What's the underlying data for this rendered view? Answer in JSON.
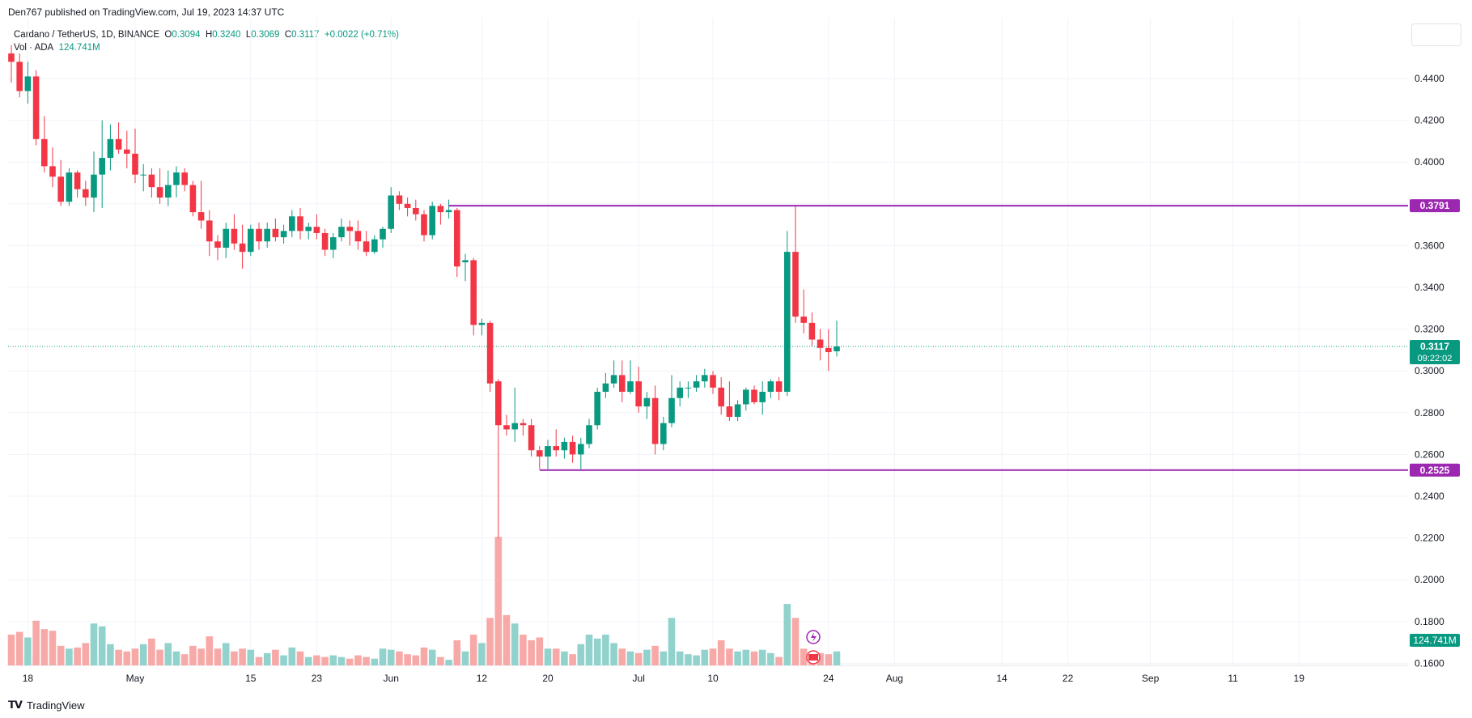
{
  "header": {
    "publisher": "Den767 published on TradingView.com, Jul 19, 2023 14:37 UTC"
  },
  "legend": {
    "symbol": "Cardano / TetherUS, 1D, BINANCE",
    "open_label": "O",
    "open": "0.3094",
    "high_label": "H",
    "high": "0.3240",
    "low_label": "L",
    "low": "0.3069",
    "close_label": "C",
    "close": "0.3117",
    "change": "+0.0022 (+0.71%)",
    "vol_label": "Vol · ADA",
    "vol_value": "124.741M"
  },
  "footer": {
    "brand": "TradingView"
  },
  "colors": {
    "up": "#089981",
    "down": "#f23645",
    "up_vol": "#92d2cc",
    "down_vol": "#f7a9a7",
    "level": "#9c27b0",
    "grid": "#f0f3fa"
  },
  "chart_data": {
    "type": "candlestick",
    "y_axis": {
      "ticks": [
        "0.4400",
        "0.4200",
        "0.4000",
        "0.3800",
        "0.3600",
        "0.3400",
        "0.3200",
        "0.3000",
        "0.2800",
        "0.2600",
        "0.2400",
        "0.2200",
        "0.2000",
        "0.1800",
        "0.1600"
      ],
      "range": [
        0.16,
        0.455
      ]
    },
    "x_axis": {
      "ticks": [
        {
          "label": "18",
          "date": "2023-04-18"
        },
        {
          "label": "May",
          "date": "2023-05-01"
        },
        {
          "label": "15",
          "date": "2023-05-15"
        },
        {
          "label": "23",
          "date": "2023-05-23"
        },
        {
          "label": "Jun",
          "date": "2023-06-01"
        },
        {
          "label": "12",
          "date": "2023-06-12"
        },
        {
          "label": "20",
          "date": "2023-06-20"
        },
        {
          "label": "Jul",
          "date": "2023-07-01"
        },
        {
          "label": "10",
          "date": "2023-07-10"
        },
        {
          "label": "24",
          "date": "2023-07-24"
        },
        {
          "label": "Aug",
          "date": "2023-08-01"
        },
        {
          "label": "14",
          "date": "2023-08-14"
        },
        {
          "label": "22",
          "date": "2023-08-22"
        },
        {
          "label": "Sep",
          "date": "2023-09-01"
        },
        {
          "label": "11",
          "date": "2023-09-11"
        },
        {
          "label": "19",
          "date": "2023-09-19"
        }
      ]
    },
    "levels": [
      {
        "value": "0.3791"
      },
      {
        "value": "0.2525"
      }
    ],
    "last_price": {
      "value": "0.3117",
      "countdown": "09:22:02"
    },
    "volume_last": "124.741M",
    "candles": [
      {
        "d": "2023-04-16",
        "o": 0.452,
        "h": 0.456,
        "l": 0.438,
        "c": 0.448,
        "v": 55
      },
      {
        "d": "2023-04-17",
        "o": 0.448,
        "h": 0.452,
        "l": 0.431,
        "c": 0.434,
        "v": 60
      },
      {
        "d": "2023-04-18",
        "o": 0.434,
        "h": 0.448,
        "l": 0.428,
        "c": 0.441,
        "v": 50
      },
      {
        "d": "2023-04-19",
        "o": 0.441,
        "h": 0.444,
        "l": 0.408,
        "c": 0.411,
        "v": 80
      },
      {
        "d": "2023-04-20",
        "o": 0.411,
        "h": 0.422,
        "l": 0.395,
        "c": 0.398,
        "v": 65
      },
      {
        "d": "2023-04-21",
        "o": 0.398,
        "h": 0.407,
        "l": 0.388,
        "c": 0.393,
        "v": 62
      },
      {
        "d": "2023-04-22",
        "o": 0.393,
        "h": 0.401,
        "l": 0.379,
        "c": 0.381,
        "v": 35
      },
      {
        "d": "2023-04-23",
        "o": 0.381,
        "h": 0.397,
        "l": 0.379,
        "c": 0.395,
        "v": 30
      },
      {
        "d": "2023-04-24",
        "o": 0.395,
        "h": 0.396,
        "l": 0.383,
        "c": 0.387,
        "v": 32
      },
      {
        "d": "2023-04-25",
        "o": 0.387,
        "h": 0.391,
        "l": 0.379,
        "c": 0.383,
        "v": 40
      },
      {
        "d": "2023-04-26",
        "o": 0.383,
        "h": 0.405,
        "l": 0.376,
        "c": 0.394,
        "v": 75
      },
      {
        "d": "2023-04-27",
        "o": 0.394,
        "h": 0.42,
        "l": 0.378,
        "c": 0.402,
        "v": 70
      },
      {
        "d": "2023-04-28",
        "o": 0.402,
        "h": 0.418,
        "l": 0.396,
        "c": 0.411,
        "v": 38
      },
      {
        "d": "2023-04-29",
        "o": 0.411,
        "h": 0.419,
        "l": 0.404,
        "c": 0.406,
        "v": 28
      },
      {
        "d": "2023-04-30",
        "o": 0.406,
        "h": 0.415,
        "l": 0.397,
        "c": 0.404,
        "v": 25
      },
      {
        "d": "2023-05-01",
        "o": 0.404,
        "h": 0.416,
        "l": 0.39,
        "c": 0.394,
        "v": 30
      },
      {
        "d": "2023-05-02",
        "o": 0.394,
        "h": 0.399,
        "l": 0.386,
        "c": 0.394,
        "v": 38
      },
      {
        "d": "2023-05-03",
        "o": 0.394,
        "h": 0.397,
        "l": 0.383,
        "c": 0.388,
        "v": 48
      },
      {
        "d": "2023-05-04",
        "o": 0.388,
        "h": 0.397,
        "l": 0.38,
        "c": 0.383,
        "v": 28
      },
      {
        "d": "2023-05-05",
        "o": 0.383,
        "h": 0.396,
        "l": 0.379,
        "c": 0.389,
        "v": 40
      },
      {
        "d": "2023-05-06",
        "o": 0.389,
        "h": 0.398,
        "l": 0.383,
        "c": 0.395,
        "v": 25
      },
      {
        "d": "2023-05-07",
        "o": 0.395,
        "h": 0.397,
        "l": 0.386,
        "c": 0.389,
        "v": 20
      },
      {
        "d": "2023-05-08",
        "o": 0.389,
        "h": 0.391,
        "l": 0.374,
        "c": 0.376,
        "v": 35
      },
      {
        "d": "2023-05-09",
        "o": 0.376,
        "h": 0.391,
        "l": 0.368,
        "c": 0.372,
        "v": 30
      },
      {
        "d": "2023-05-10",
        "o": 0.372,
        "h": 0.377,
        "l": 0.355,
        "c": 0.362,
        "v": 52
      },
      {
        "d": "2023-05-11",
        "o": 0.362,
        "h": 0.365,
        "l": 0.353,
        "c": 0.359,
        "v": 30
      },
      {
        "d": "2023-05-12",
        "o": 0.359,
        "h": 0.371,
        "l": 0.354,
        "c": 0.368,
        "v": 40
      },
      {
        "d": "2023-05-13",
        "o": 0.368,
        "h": 0.375,
        "l": 0.358,
        "c": 0.361,
        "v": 25
      },
      {
        "d": "2023-05-14",
        "o": 0.361,
        "h": 0.37,
        "l": 0.349,
        "c": 0.357,
        "v": 30
      },
      {
        "d": "2023-05-15",
        "o": 0.357,
        "h": 0.37,
        "l": 0.355,
        "c": 0.368,
        "v": 28
      },
      {
        "d": "2023-05-16",
        "o": 0.368,
        "h": 0.371,
        "l": 0.358,
        "c": 0.362,
        "v": 15
      },
      {
        "d": "2023-05-17",
        "o": 0.362,
        "h": 0.371,
        "l": 0.359,
        "c": 0.368,
        "v": 22
      },
      {
        "d": "2023-05-18",
        "o": 0.368,
        "h": 0.373,
        "l": 0.362,
        "c": 0.364,
        "v": 28
      },
      {
        "d": "2023-05-19",
        "o": 0.364,
        "h": 0.37,
        "l": 0.361,
        "c": 0.367,
        "v": 18
      },
      {
        "d": "2023-05-20",
        "o": 0.367,
        "h": 0.377,
        "l": 0.364,
        "c": 0.374,
        "v": 32
      },
      {
        "d": "2023-05-21",
        "o": 0.374,
        "h": 0.378,
        "l": 0.363,
        "c": 0.367,
        "v": 25
      },
      {
        "d": "2023-05-22",
        "o": 0.367,
        "h": 0.371,
        "l": 0.363,
        "c": 0.369,
        "v": 15
      },
      {
        "d": "2023-05-23",
        "o": 0.369,
        "h": 0.375,
        "l": 0.363,
        "c": 0.366,
        "v": 18
      },
      {
        "d": "2023-05-24",
        "o": 0.366,
        "h": 0.368,
        "l": 0.355,
        "c": 0.358,
        "v": 15
      },
      {
        "d": "2023-05-25",
        "o": 0.358,
        "h": 0.366,
        "l": 0.354,
        "c": 0.364,
        "v": 18
      },
      {
        "d": "2023-05-26",
        "o": 0.364,
        "h": 0.373,
        "l": 0.362,
        "c": 0.369,
        "v": 15
      },
      {
        "d": "2023-05-27",
        "o": 0.369,
        "h": 0.372,
        "l": 0.36,
        "c": 0.367,
        "v": 12
      },
      {
        "d": "2023-05-28",
        "o": 0.367,
        "h": 0.372,
        "l": 0.358,
        "c": 0.362,
        "v": 18
      },
      {
        "d": "2023-05-29",
        "o": 0.362,
        "h": 0.367,
        "l": 0.355,
        "c": 0.357,
        "v": 15
      },
      {
        "d": "2023-05-30",
        "o": 0.357,
        "h": 0.365,
        "l": 0.356,
        "c": 0.363,
        "v": 12
      },
      {
        "d": "2023-05-31",
        "o": 0.363,
        "h": 0.369,
        "l": 0.359,
        "c": 0.368,
        "v": 30
      },
      {
        "d": "2023-06-01",
        "o": 0.368,
        "h": 0.388,
        "l": 0.366,
        "c": 0.384,
        "v": 28
      },
      {
        "d": "2023-06-02",
        "o": 0.384,
        "h": 0.386,
        "l": 0.377,
        "c": 0.38,
        "v": 25
      },
      {
        "d": "2023-06-03",
        "o": 0.38,
        "h": 0.383,
        "l": 0.374,
        "c": 0.378,
        "v": 20
      },
      {
        "d": "2023-06-04",
        "o": 0.378,
        "h": 0.382,
        "l": 0.372,
        "c": 0.375,
        "v": 18
      },
      {
        "d": "2023-06-05",
        "o": 0.375,
        "h": 0.377,
        "l": 0.362,
        "c": 0.365,
        "v": 32
      },
      {
        "d": "2023-06-06",
        "o": 0.365,
        "h": 0.381,
        "l": 0.363,
        "c": 0.379,
        "v": 28
      },
      {
        "d": "2023-06-07",
        "o": 0.379,
        "h": 0.38,
        "l": 0.37,
        "c": 0.376,
        "v": 15
      },
      {
        "d": "2023-06-08",
        "o": 0.376,
        "h": 0.382,
        "l": 0.373,
        "c": 0.377,
        "v": 10
      },
      {
        "d": "2023-06-09",
        "o": 0.377,
        "h": 0.378,
        "l": 0.345,
        "c": 0.35,
        "v": 45
      },
      {
        "d": "2023-06-10",
        "o": 0.352,
        "h": 0.356,
        "l": 0.343,
        "c": 0.353,
        "v": 25
      },
      {
        "d": "2023-06-11",
        "o": 0.353,
        "h": 0.354,
        "l": 0.317,
        "c": 0.322,
        "v": 55
      },
      {
        "d": "2023-06-12",
        "o": 0.322,
        "h": 0.325,
        "l": 0.317,
        "c": 0.323,
        "v": 40
      },
      {
        "d": "2023-06-13",
        "o": 0.323,
        "h": 0.324,
        "l": 0.29,
        "c": 0.294,
        "v": 85
      },
      {
        "d": "2023-06-14",
        "o": 0.295,
        "h": 0.296,
        "l": 0.22,
        "c": 0.274,
        "v": 230
      },
      {
        "d": "2023-06-15",
        "o": 0.274,
        "h": 0.279,
        "l": 0.269,
        "c": 0.272,
        "v": 90
      },
      {
        "d": "2023-06-16",
        "o": 0.272,
        "h": 0.292,
        "l": 0.266,
        "c": 0.275,
        "v": 75
      },
      {
        "d": "2023-06-17",
        "o": 0.275,
        "h": 0.277,
        "l": 0.269,
        "c": 0.274,
        "v": 55
      },
      {
        "d": "2023-06-18",
        "o": 0.274,
        "h": 0.277,
        "l": 0.259,
        "c": 0.262,
        "v": 45
      },
      {
        "d": "2023-06-19",
        "o": 0.262,
        "h": 0.264,
        "l": 0.253,
        "c": 0.259,
        "v": 50
      },
      {
        "d": "2023-06-20",
        "o": 0.259,
        "h": 0.267,
        "l": 0.253,
        "c": 0.264,
        "v": 30
      },
      {
        "d": "2023-06-21",
        "o": 0.264,
        "h": 0.272,
        "l": 0.259,
        "c": 0.262,
        "v": 30
      },
      {
        "d": "2023-06-22",
        "o": 0.262,
        "h": 0.268,
        "l": 0.258,
        "c": 0.266,
        "v": 25
      },
      {
        "d": "2023-06-23",
        "o": 0.266,
        "h": 0.269,
        "l": 0.256,
        "c": 0.26,
        "v": 20
      },
      {
        "d": "2023-06-24",
        "o": 0.26,
        "h": 0.268,
        "l": 0.253,
        "c": 0.265,
        "v": 38
      },
      {
        "d": "2023-06-25",
        "o": 0.265,
        "h": 0.277,
        "l": 0.263,
        "c": 0.274,
        "v": 55
      },
      {
        "d": "2023-06-26",
        "o": 0.274,
        "h": 0.292,
        "l": 0.272,
        "c": 0.29,
        "v": 48
      },
      {
        "d": "2023-06-27",
        "o": 0.29,
        "h": 0.299,
        "l": 0.287,
        "c": 0.294,
        "v": 55
      },
      {
        "d": "2023-06-28",
        "o": 0.294,
        "h": 0.305,
        "l": 0.292,
        "c": 0.298,
        "v": 40
      },
      {
        "d": "2023-06-29",
        "o": 0.298,
        "h": 0.305,
        "l": 0.285,
        "c": 0.29,
        "v": 30
      },
      {
        "d": "2023-06-30",
        "o": 0.29,
        "h": 0.305,
        "l": 0.289,
        "c": 0.295,
        "v": 25
      },
      {
        "d": "2023-07-01",
        "o": 0.295,
        "h": 0.302,
        "l": 0.28,
        "c": 0.283,
        "v": 22
      },
      {
        "d": "2023-07-02",
        "o": 0.283,
        "h": 0.29,
        "l": 0.277,
        "c": 0.287,
        "v": 28
      },
      {
        "d": "2023-07-03",
        "o": 0.287,
        "h": 0.293,
        "l": 0.26,
        "c": 0.265,
        "v": 35
      },
      {
        "d": "2023-07-04",
        "o": 0.265,
        "h": 0.278,
        "l": 0.262,
        "c": 0.275,
        "v": 25
      },
      {
        "d": "2023-07-05",
        "o": 0.275,
        "h": 0.298,
        "l": 0.273,
        "c": 0.287,
        "v": 85
      },
      {
        "d": "2023-07-06",
        "o": 0.287,
        "h": 0.295,
        "l": 0.283,
        "c": 0.292,
        "v": 25
      },
      {
        "d": "2023-07-07",
        "o": 0.292,
        "h": 0.295,
        "l": 0.287,
        "c": 0.292,
        "v": 20
      },
      {
        "d": "2023-07-08",
        "o": 0.292,
        "h": 0.298,
        "l": 0.29,
        "c": 0.295,
        "v": 18
      },
      {
        "d": "2023-07-09",
        "o": 0.295,
        "h": 0.301,
        "l": 0.292,
        "c": 0.298,
        "v": 28
      },
      {
        "d": "2023-07-10",
        "o": 0.298,
        "h": 0.3,
        "l": 0.289,
        "c": 0.292,
        "v": 30
      },
      {
        "d": "2023-07-11",
        "o": 0.292,
        "h": 0.297,
        "l": 0.279,
        "c": 0.283,
        "v": 45
      },
      {
        "d": "2023-07-12",
        "o": 0.283,
        "h": 0.295,
        "l": 0.276,
        "c": 0.278,
        "v": 30
      },
      {
        "d": "2023-07-13",
        "o": 0.278,
        "h": 0.286,
        "l": 0.276,
        "c": 0.284,
        "v": 25
      },
      {
        "d": "2023-07-14",
        "o": 0.284,
        "h": 0.292,
        "l": 0.281,
        "c": 0.291,
        "v": 28
      },
      {
        "d": "2023-07-15",
        "o": 0.291,
        "h": 0.293,
        "l": 0.284,
        "c": 0.285,
        "v": 25
      },
      {
        "d": "2023-07-16",
        "o": 0.285,
        "h": 0.295,
        "l": 0.279,
        "c": 0.29,
        "v": 28
      },
      {
        "d": "2023-07-17",
        "o": 0.29,
        "h": 0.296,
        "l": 0.287,
        "c": 0.295,
        "v": 22
      },
      {
        "d": "2023-07-18",
        "o": 0.295,
        "h": 0.297,
        "l": 0.286,
        "c": 0.29,
        "v": 15
      },
      {
        "d": "2023-07-19",
        "o": 0.29,
        "h": 0.367,
        "l": 0.288,
        "c": 0.357,
        "v": 110
      },
      {
        "d": "2023-07-20",
        "o": 0.357,
        "h": 0.379,
        "l": 0.323,
        "c": 0.326,
        "v": 85
      },
      {
        "d": "2023-07-21",
        "o": 0.326,
        "h": 0.339,
        "l": 0.318,
        "c": 0.323,
        "v": 30
      },
      {
        "d": "2023-07-22",
        "o": 0.323,
        "h": 0.328,
        "l": 0.312,
        "c": 0.315,
        "v": 25
      },
      {
        "d": "2023-07-23",
        "o": 0.315,
        "h": 0.32,
        "l": 0.305,
        "c": 0.311,
        "v": 22
      },
      {
        "d": "2023-07-24",
        "o": 0.311,
        "h": 0.32,
        "l": 0.3,
        "c": 0.309,
        "v": 20
      },
      {
        "d": "2023-07-25",
        "o": 0.3094,
        "h": 0.324,
        "l": 0.3069,
        "c": 0.3117,
        "v": 25
      }
    ]
  }
}
